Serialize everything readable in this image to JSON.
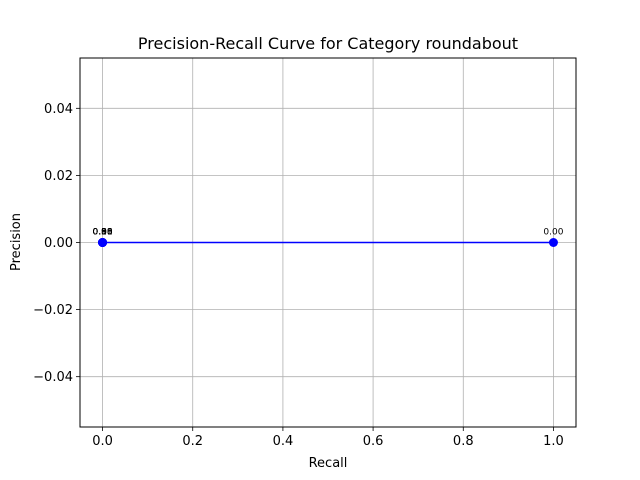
{
  "chart_data": {
    "type": "line",
    "title": "Precision-Recall Curve for Category roundabout",
    "xlabel": "Recall",
    "ylabel": "Precision",
    "xlim": [
      -0.05,
      1.05
    ],
    "ylim": [
      -0.055,
      0.055
    ],
    "xticks": [
      0.0,
      0.2,
      0.4,
      0.6,
      0.8,
      1.0
    ],
    "xtick_labels": [
      "0.0",
      "0.2",
      "0.4",
      "0.6",
      "0.8",
      "1.0"
    ],
    "yticks": [
      -0.04,
      -0.02,
      0.0,
      0.02,
      0.04
    ],
    "ytick_labels": [
      "−0.04",
      "−0.02",
      "0.00",
      "0.02",
      "0.04"
    ],
    "grid": true,
    "series": [
      {
        "color": "#0000ff",
        "marker": "circle",
        "x": [
          0.0,
          0.0,
          0.0,
          0.0,
          0.0,
          1.0
        ],
        "y": [
          0.0,
          0.0,
          0.0,
          0.0,
          0.0,
          0.0
        ],
        "point_labels": [
          "0.96",
          "0.80",
          "0.51",
          "0.18",
          "0.00",
          "0.00"
        ]
      }
    ]
  }
}
